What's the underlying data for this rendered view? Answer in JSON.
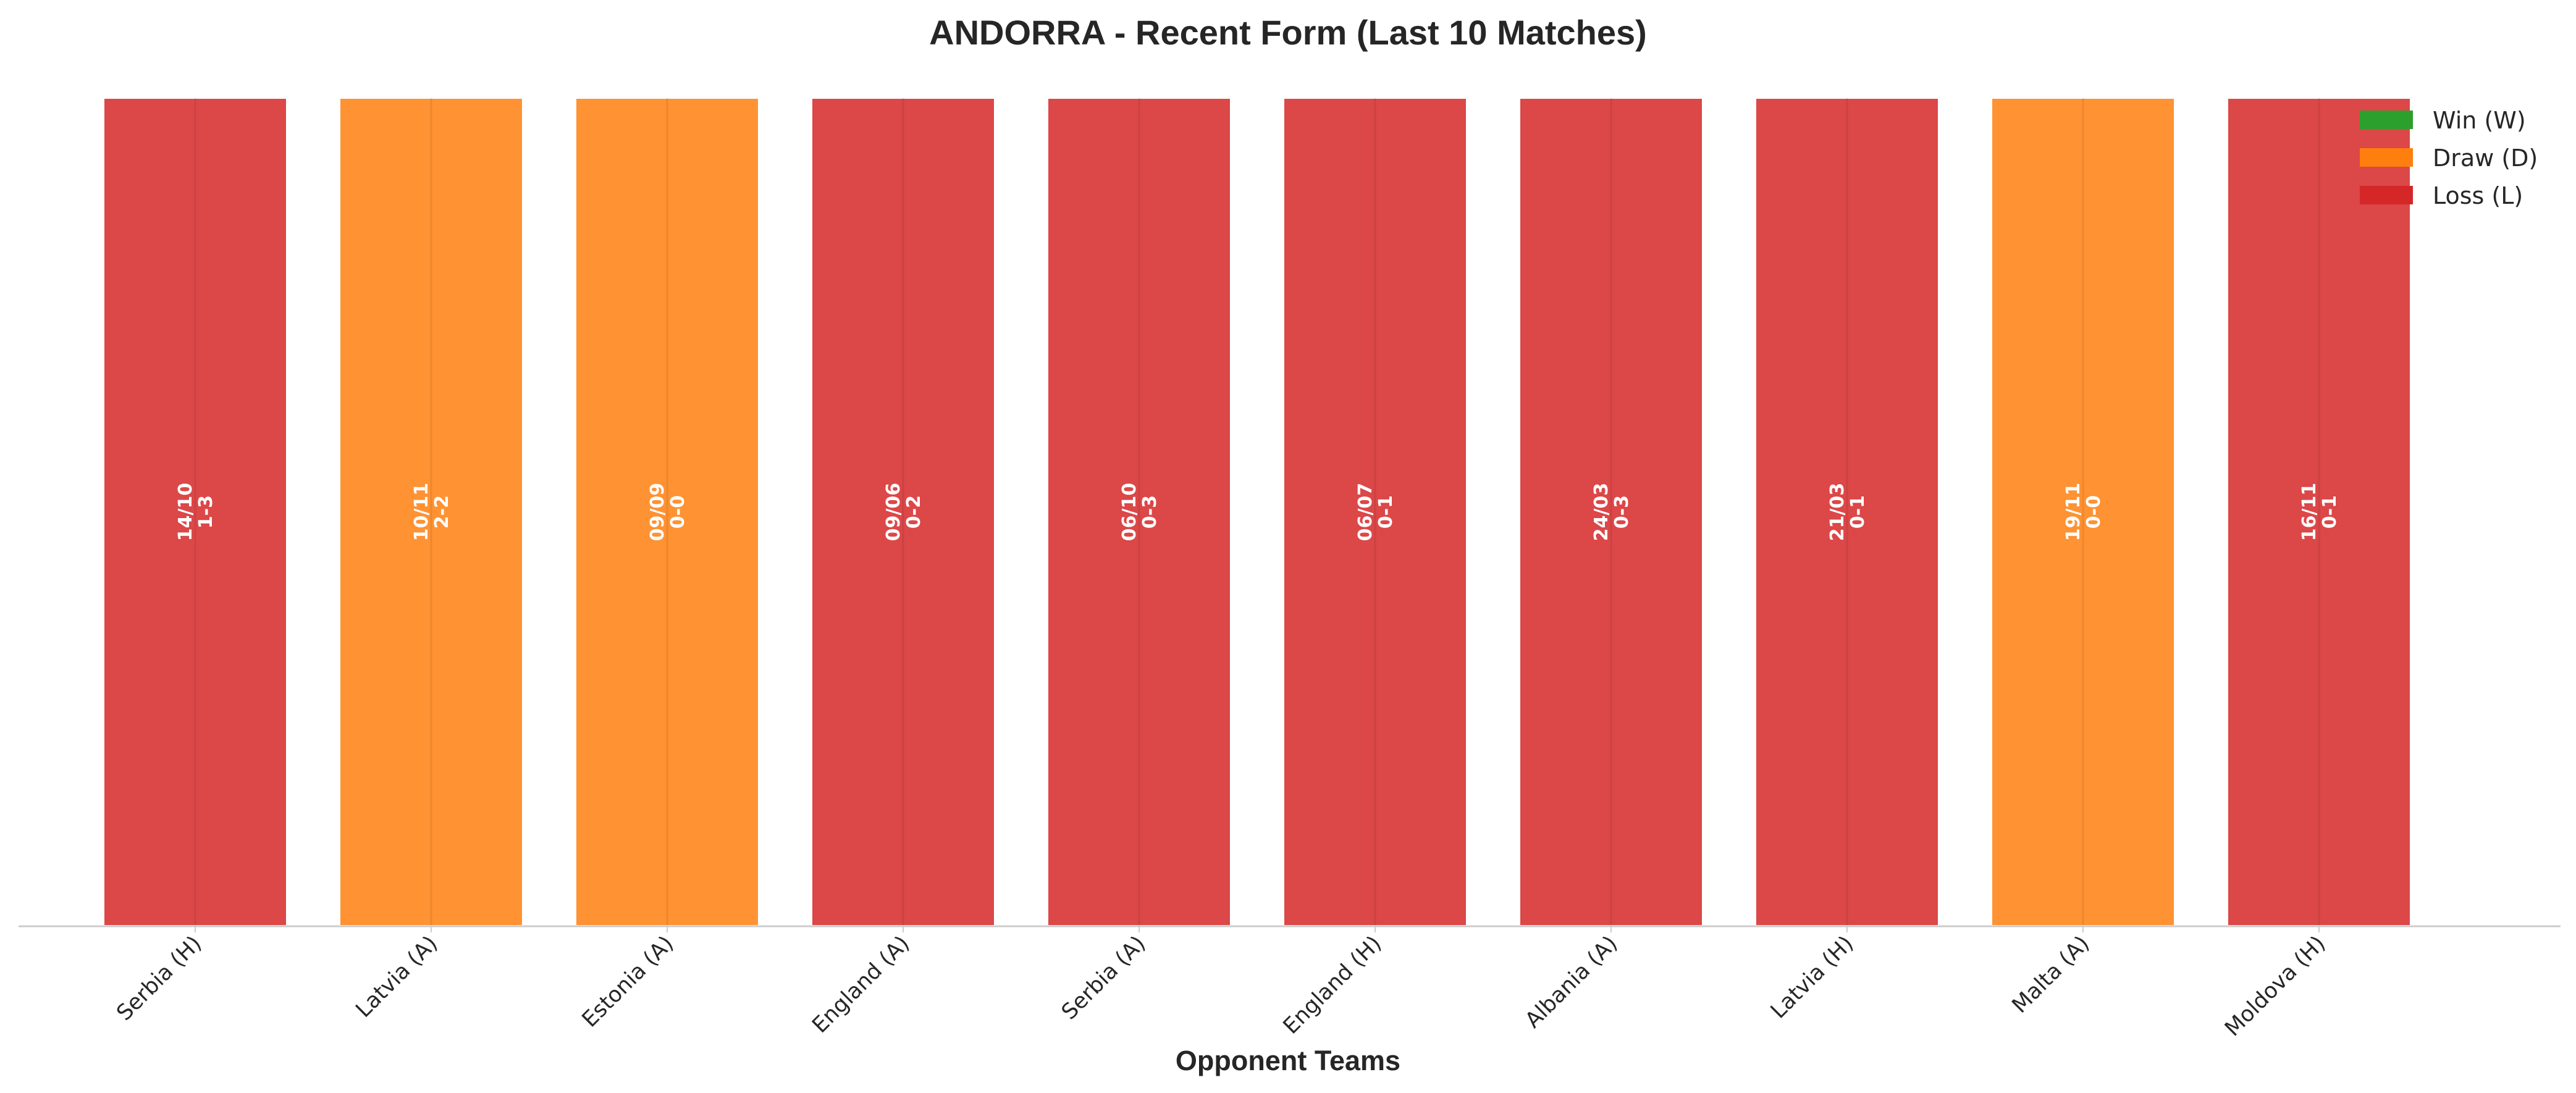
{
  "chart_data": {
    "type": "bar",
    "title": "ANDORRA - Recent Form (Last 10 Matches)",
    "xlabel": "Opponent Teams",
    "ylabel": "",
    "ylim": [
      0,
      1
    ],
    "grid": false,
    "legend_position": "top-right",
    "categories": [
      "Serbia (H)",
      "Latvia (A)",
      "Estonia (A)",
      "England (A)",
      "Serbia (A)",
      "England (H)",
      "Albania (A)",
      "Latvia (H)",
      "Malta (A)",
      "Moldova (H)"
    ],
    "values": [
      1,
      1,
      1,
      1,
      1,
      1,
      1,
      1,
      1,
      1
    ],
    "results": [
      "L",
      "D",
      "D",
      "L",
      "L",
      "L",
      "L",
      "L",
      "D",
      "L"
    ],
    "dates": [
      "14/10",
      "10/11",
      "09/09",
      "09/06",
      "06/10",
      "06/07",
      "24/03",
      "21/03",
      "19/11",
      "16/11"
    ],
    "scores": [
      "1-3",
      "2-2",
      "0-0",
      "0-2",
      "0-3",
      "0-1",
      "0-3",
      "0-1",
      "0-0",
      "0-1"
    ],
    "legend": [
      {
        "key": "W",
        "label": "Win (W)",
        "color": "#2ca02c"
      },
      {
        "key": "D",
        "label": "Draw (D)",
        "color": "#ff7f0e"
      },
      {
        "key": "L",
        "label": "Loss (L)",
        "color": "#d62728"
      }
    ]
  }
}
